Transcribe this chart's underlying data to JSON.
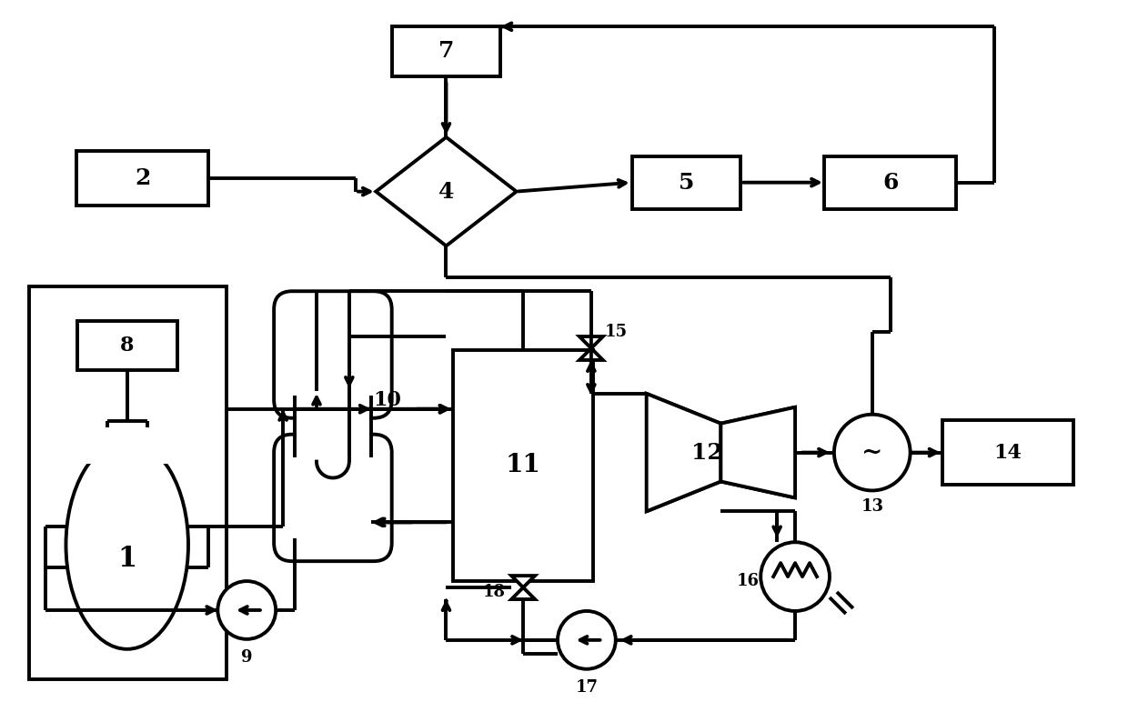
{
  "bg": "#ffffff",
  "lc": "#000000",
  "lw": 2.8,
  "fw": 12.4,
  "fh": 7.72,
  "dpi": 100
}
